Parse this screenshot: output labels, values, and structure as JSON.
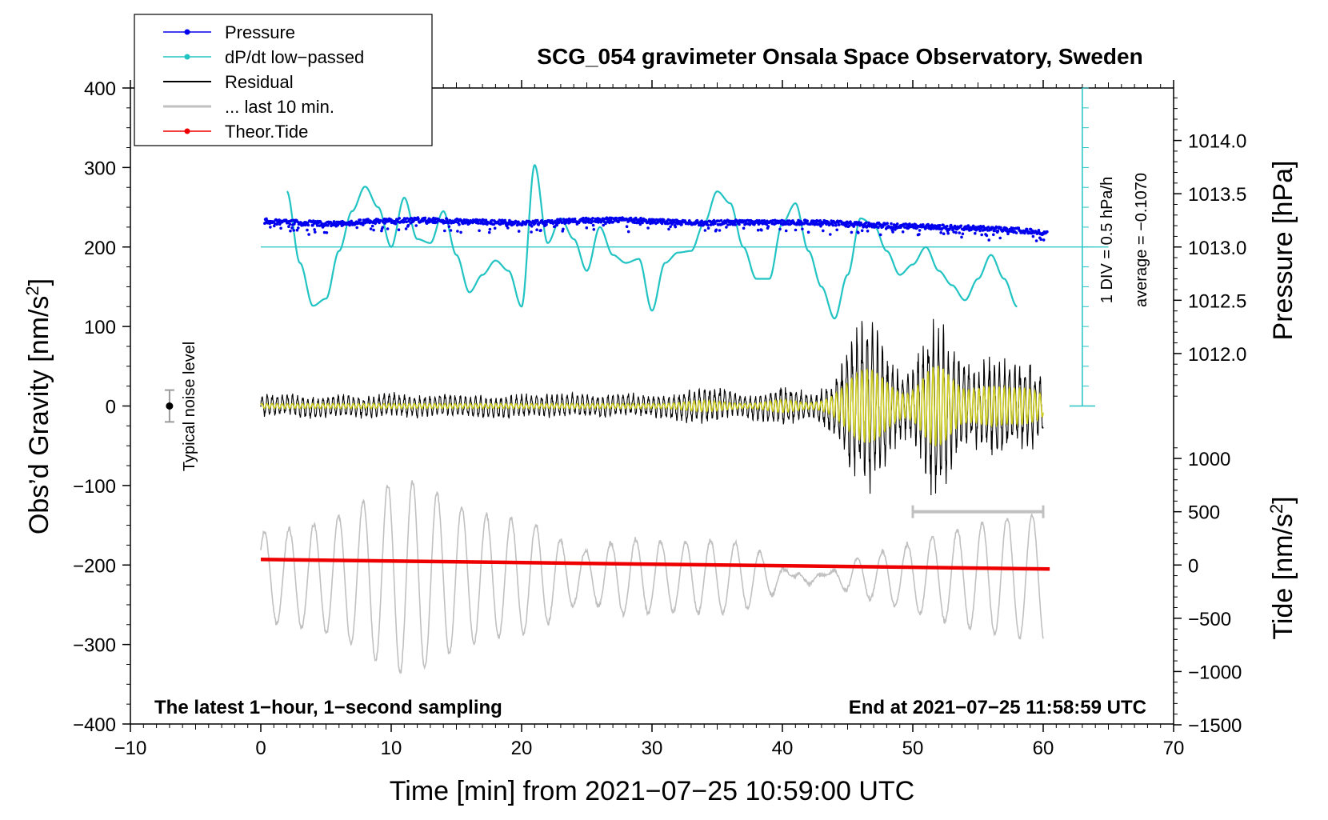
{
  "chart_data": {
    "type": "line",
    "title": "SCG_054 gravimeter Onsala Space Observatory, Sweden",
    "xlabel": "Time [min] from 2021−07−25 10:59:00 UTC",
    "ylabel_left_main": "Obs’d Gravity [nm/s",
    "ylabel_left_sup": "2",
    "ylabel_left_end": "]",
    "ylabel_right_pressure": "Pressure [hPa]",
    "ylabel_right_tide_main": "Tide [nm/s",
    "ylabel_right_tide_sup": "2",
    "ylabel_right_tide_end": "]",
    "xlim": [
      -10,
      70
    ],
    "ylim": [
      -400,
      400
    ],
    "x_ticks": [
      {
        "v": -10,
        "label": "−10"
      },
      {
        "v": 0,
        "label": "0"
      },
      {
        "v": 10,
        "label": "10"
      },
      {
        "v": 20,
        "label": "20"
      },
      {
        "v": 30,
        "label": "30"
      },
      {
        "v": 40,
        "label": "40"
      },
      {
        "v": 50,
        "label": "50"
      },
      {
        "v": 60,
        "label": "60"
      },
      {
        "v": 70,
        "label": "70"
      }
    ],
    "y_ticks": [
      {
        "v": 400,
        "label": "400"
      },
      {
        "v": 300,
        "label": "300"
      },
      {
        "v": 200,
        "label": "200"
      },
      {
        "v": 100,
        "label": "100"
      },
      {
        "v": 0,
        "label": "0"
      },
      {
        "v": -100,
        "label": "−100"
      },
      {
        "v": -200,
        "label": "−200"
      },
      {
        "v": -300,
        "label": "−300"
      },
      {
        "v": -400,
        "label": "−400"
      }
    ],
    "pressure_axis": {
      "ticks": [
        {
          "v": 1012.0,
          "label": "1012.0"
        },
        {
          "v": 1012.5,
          "label": "1012.5"
        },
        {
          "v": 1013.0,
          "label": "1013.0"
        },
        {
          "v": 1013.5,
          "label": "1013.5"
        },
        {
          "v": 1014.0,
          "label": "1014.0"
        }
      ],
      "gravity_per_hpa": 134,
      "pressure_at_200": 1013.0
    },
    "tide_axis": {
      "ticks": [
        {
          "v": 1000,
          "label": "1000"
        },
        {
          "v": 500,
          "label": "500"
        },
        {
          "v": 0,
          "label": "0"
        },
        {
          "v": -500,
          "label": "−500"
        },
        {
          "v": -1000,
          "label": "−1000"
        },
        {
          "v": -1500,
          "label": "−1500"
        }
      ],
      "gravity_per_nm": 0.134,
      "tide_at_minus200": 0
    },
    "legend": [
      {
        "label": "Pressure",
        "color": "#0000ee",
        "style": "line-dot"
      },
      {
        "label": "dP/dt low−passed",
        "color": "#22c3c3",
        "style": "line-dot"
      },
      {
        "label": "Residual",
        "color": "#000000",
        "style": "line"
      },
      {
        "label": "... last 10 min.",
        "color": "#c0c0c0",
        "style": "line"
      },
      {
        "label": "Theor.Tide",
        "color": "#ee0000",
        "style": "line-dot"
      }
    ],
    "dpdt_scale": {
      "label_div": "1 DIV = 0.5 hPa/h",
      "label_avg": "average = −0.1070",
      "x": 63,
      "y_range": [
        0,
        400
      ],
      "baseline_y": 200
    },
    "noise_marker": {
      "label": "Typical noise level",
      "x": -7,
      "y": 0,
      "err": 20
    },
    "last10_bar": {
      "x0": 50,
      "x1": 60,
      "y": -133
    },
    "footer_left": "The latest 1−hour, 1−second sampling",
    "footer_right": "End at 2021−07−25 11:58:59 UTC",
    "series": [
      {
        "name": "Pressure",
        "color": "#0000ee",
        "x": [
          0,
          2,
          4,
          6,
          8,
          10,
          12,
          14,
          16,
          18,
          20,
          22,
          24,
          26,
          28,
          30,
          32,
          34,
          36,
          38,
          40,
          42,
          44,
          46,
          48,
          50,
          52,
          54,
          56,
          58,
          60.3
        ],
        "y": [
          233,
          231,
          230,
          229,
          232,
          233,
          234,
          233,
          232,
          231,
          230,
          231,
          233,
          234,
          234,
          233,
          231,
          230,
          231,
          231,
          231,
          231,
          230,
          228,
          227,
          226,
          225,
          224,
          223,
          221,
          218
        ]
      },
      {
        "name": "dP/dt low−passed",
        "color": "#22c3c3",
        "x": [
          2,
          3,
          4,
          5,
          6,
          7,
          8,
          9,
          10,
          11,
          12,
          13,
          14,
          15,
          16,
          17,
          18,
          19,
          20,
          21,
          22,
          23,
          24,
          25,
          26,
          27,
          28,
          29,
          30,
          31,
          32,
          33,
          34,
          35,
          36,
          37,
          38,
          39,
          40,
          41,
          42,
          43,
          44,
          45,
          46,
          47,
          48,
          49,
          50,
          51,
          52,
          53,
          54,
          55,
          56,
          57,
          58
        ],
        "y": [
          270,
          180,
          126,
          135,
          195,
          245,
          276,
          250,
          200,
          262,
          210,
          205,
          245,
          190,
          143,
          165,
          183,
          170,
          125,
          303,
          205,
          236,
          210,
          170,
          225,
          190,
          180,
          185,
          120,
          180,
          193,
          195,
          230,
          270,
          255,
          200,
          160,
          160,
          230,
          255,
          195,
          150,
          110,
          165,
          236,
          228,
          195,
          165,
          178,
          200,
          170,
          152,
          133,
          160,
          190,
          160,
          125
        ]
      },
      {
        "name": "Residual",
        "color": "#000000",
        "x": [
          0,
          2,
          4,
          6,
          8,
          10,
          12,
          14,
          16,
          18,
          20,
          22,
          24,
          26,
          28,
          30,
          32,
          34,
          36,
          38,
          40,
          42,
          44,
          46,
          48,
          50,
          52,
          54,
          56,
          58,
          60
        ],
        "y": [
          0,
          2,
          -3,
          1,
          -2,
          3,
          -1,
          2,
          0,
          -3,
          1,
          0,
          2,
          -1,
          3,
          0,
          -2,
          1,
          4,
          -3,
          2,
          0,
          -5,
          8,
          -6,
          3,
          -4,
          2,
          -3,
          1,
          0
        ]
      },
      {
        "name": "Theor.Tide",
        "color": "#ee0000",
        "x": [
          0,
          60.5
        ],
        "y": [
          -193,
          -205
        ]
      }
    ]
  }
}
